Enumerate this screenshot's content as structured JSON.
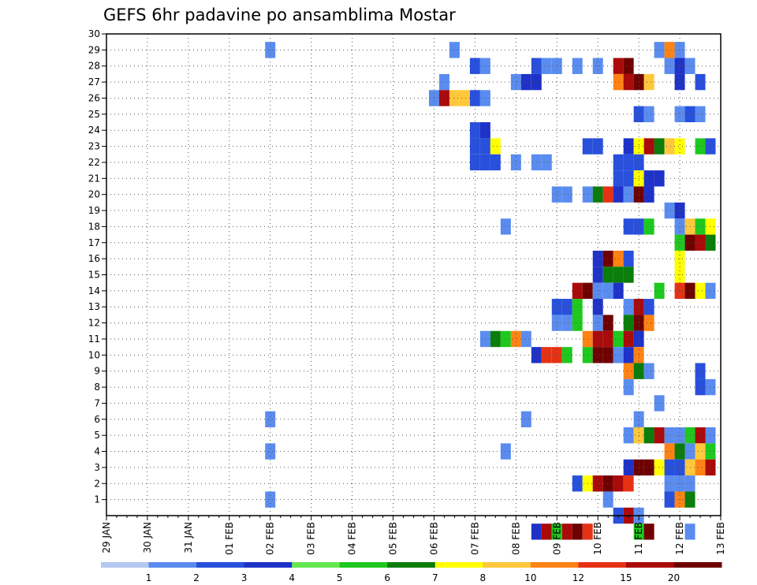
{
  "chart_data": {
    "type": "heatmap",
    "title": "GEFS 6hr padavine po ansamblima Mostar",
    "x_tick_labels": [
      "29 JAN",
      "30 JAN",
      "31 JAN",
      "01 FEB",
      "02 FEB",
      "03 FEB",
      "04 FEB",
      "05 FEB",
      "06 FEB",
      "07 FEB",
      "08 FEB",
      "09 FEB",
      "10 FEB",
      "11 FEB",
      "12 FEB",
      "13 FEB"
    ],
    "y_tick_labels": [
      "1",
      "2",
      "3",
      "4",
      "5",
      "6",
      "7",
      "8",
      "9",
      "10",
      "11",
      "12",
      "13",
      "14",
      "15",
      "16",
      "17",
      "18",
      "19",
      "20",
      "21",
      "22",
      "23",
      "24",
      "25",
      "26",
      "27",
      "28",
      "29",
      "30"
    ],
    "x_range_steps": [
      0,
      60
    ],
    "y_range": [
      0,
      30
    ],
    "grid": true,
    "colorbar": {
      "levels": [
        1,
        2,
        3,
        4,
        5,
        6,
        7,
        8,
        10,
        12,
        15,
        20
      ],
      "colors": [
        "#b4c8f0",
        "#5a8cf0",
        "#2850dc",
        "#1e32c8",
        "#64e650",
        "#1ec81e",
        "#0a7d0a",
        "#ffff00",
        "#ffc83c",
        "#ff8214",
        "#e63214",
        "#aa0a0a",
        "#6e0000"
      ]
    },
    "cells": [
      [
        16,
        29,
        1
      ],
      [
        34,
        29,
        1
      ],
      [
        54,
        29,
        1
      ],
      [
        55,
        29,
        9
      ],
      [
        56,
        29,
        1
      ],
      [
        36,
        28,
        2
      ],
      [
        37,
        28,
        1
      ],
      [
        42,
        28,
        2
      ],
      [
        43,
        28,
        1
      ],
      [
        44,
        28,
        1
      ],
      [
        46,
        28,
        1
      ],
      [
        48,
        28,
        1
      ],
      [
        50,
        28,
        11
      ],
      [
        51,
        28,
        12
      ],
      [
        55,
        28,
        1
      ],
      [
        56,
        28,
        3
      ],
      [
        57,
        28,
        1
      ],
      [
        33,
        27,
        1
      ],
      [
        40,
        27,
        1
      ],
      [
        41,
        27,
        3
      ],
      [
        42,
        27,
        3
      ],
      [
        50,
        27,
        9
      ],
      [
        51,
        27,
        11
      ],
      [
        52,
        27,
        12
      ],
      [
        53,
        27,
        8
      ],
      [
        56,
        27,
        3
      ],
      [
        58,
        27,
        2
      ],
      [
        32,
        26,
        1
      ],
      [
        33,
        26,
        11
      ],
      [
        34,
        26,
        8
      ],
      [
        35,
        26,
        8
      ],
      [
        36,
        26,
        2
      ],
      [
        37,
        26,
        1
      ],
      [
        52,
        25,
        2
      ],
      [
        53,
        25,
        1
      ],
      [
        56,
        25,
        1
      ],
      [
        57,
        25,
        2
      ],
      [
        58,
        25,
        1
      ],
      [
        36,
        24,
        2
      ],
      [
        37,
        24,
        3
      ],
      [
        36,
        23,
        2
      ],
      [
        37,
        23,
        2
      ],
      [
        38,
        23,
        7
      ],
      [
        47,
        23,
        2
      ],
      [
        48,
        23,
        2
      ],
      [
        51,
        23,
        3
      ],
      [
        52,
        23,
        7
      ],
      [
        53,
        23,
        11
      ],
      [
        54,
        23,
        6
      ],
      [
        55,
        23,
        8
      ],
      [
        56,
        23,
        7
      ],
      [
        58,
        23,
        5
      ],
      [
        59,
        23,
        2
      ],
      [
        36,
        22,
        2
      ],
      [
        37,
        22,
        2
      ],
      [
        38,
        22,
        2
      ],
      [
        40,
        22,
        1
      ],
      [
        42,
        22,
        1
      ],
      [
        43,
        22,
        1
      ],
      [
        50,
        22,
        2
      ],
      [
        51,
        22,
        2
      ],
      [
        52,
        22,
        2
      ],
      [
        50,
        21,
        2
      ],
      [
        51,
        21,
        2
      ],
      [
        52,
        21,
        7
      ],
      [
        53,
        21,
        3
      ],
      [
        54,
        21,
        3
      ],
      [
        44,
        20,
        1
      ],
      [
        45,
        20,
        1
      ],
      [
        47,
        20,
        1
      ],
      [
        48,
        20,
        6
      ],
      [
        49,
        20,
        10
      ],
      [
        50,
        20,
        3
      ],
      [
        51,
        20,
        1
      ],
      [
        52,
        20,
        12
      ],
      [
        53,
        20,
        3
      ],
      [
        55,
        19,
        1
      ],
      [
        56,
        19,
        3
      ],
      [
        39,
        18,
        1
      ],
      [
        51,
        18,
        2
      ],
      [
        52,
        18,
        2
      ],
      [
        53,
        18,
        5
      ],
      [
        56,
        18,
        1
      ],
      [
        57,
        18,
        8
      ],
      [
        58,
        18,
        5
      ],
      [
        59,
        18,
        7
      ],
      [
        56,
        17,
        5
      ],
      [
        57,
        17,
        12
      ],
      [
        58,
        17,
        11
      ],
      [
        59,
        17,
        6
      ],
      [
        48,
        16,
        3
      ],
      [
        49,
        16,
        12
      ],
      [
        50,
        16,
        9
      ],
      [
        51,
        16,
        2
      ],
      [
        56,
        16,
        7
      ],
      [
        48,
        15,
        3
      ],
      [
        49,
        15,
        6
      ],
      [
        50,
        15,
        6
      ],
      [
        51,
        15,
        6
      ],
      [
        56,
        15,
        7
      ],
      [
        46,
        14,
        11
      ],
      [
        47,
        14,
        12
      ],
      [
        48,
        14,
        1
      ],
      [
        49,
        14,
        1
      ],
      [
        50,
        14,
        3
      ],
      [
        54,
        14,
        5
      ],
      [
        56,
        14,
        10
      ],
      [
        57,
        14,
        12
      ],
      [
        58,
        14,
        7
      ],
      [
        59,
        14,
        1
      ],
      [
        44,
        13,
        2
      ],
      [
        45,
        13,
        2
      ],
      [
        46,
        13,
        5
      ],
      [
        48,
        13,
        3
      ],
      [
        51,
        13,
        1
      ],
      [
        52,
        13,
        11
      ],
      [
        53,
        13,
        2
      ],
      [
        44,
        12,
        1
      ],
      [
        45,
        12,
        1
      ],
      [
        46,
        12,
        5
      ],
      [
        48,
        12,
        1
      ],
      [
        49,
        12,
        12
      ],
      [
        51,
        12,
        6
      ],
      [
        52,
        12,
        12
      ],
      [
        53,
        12,
        9
      ],
      [
        37,
        11,
        1
      ],
      [
        38,
        11,
        6
      ],
      [
        39,
        11,
        5
      ],
      [
        40,
        11,
        9
      ],
      [
        41,
        11,
        1
      ],
      [
        47,
        11,
        9
      ],
      [
        48,
        11,
        11
      ],
      [
        49,
        11,
        11
      ],
      [
        50,
        11,
        5
      ],
      [
        51,
        11,
        11
      ],
      [
        52,
        11,
        3
      ],
      [
        42,
        10,
        3
      ],
      [
        43,
        10,
        10
      ],
      [
        44,
        10,
        10
      ],
      [
        45,
        10,
        5
      ],
      [
        47,
        10,
        5
      ],
      [
        48,
        10,
        12
      ],
      [
        49,
        10,
        12
      ],
      [
        50,
        10,
        1
      ],
      [
        51,
        10,
        3
      ],
      [
        52,
        10,
        9
      ],
      [
        51,
        9,
        9
      ],
      [
        52,
        9,
        6
      ],
      [
        53,
        9,
        1
      ],
      [
        58,
        9,
        2
      ],
      [
        51,
        8,
        1
      ],
      [
        58,
        8,
        2
      ],
      [
        59,
        8,
        1
      ],
      [
        54,
        7,
        1
      ],
      [
        16,
        6,
        1
      ],
      [
        41,
        6,
        1
      ],
      [
        52,
        6,
        1
      ],
      [
        51,
        5,
        1
      ],
      [
        52,
        5,
        8
      ],
      [
        53,
        5,
        6
      ],
      [
        54,
        5,
        11
      ],
      [
        55,
        5,
        1
      ],
      [
        56,
        5,
        1
      ],
      [
        57,
        5,
        5
      ],
      [
        58,
        5,
        11
      ],
      [
        59,
        5,
        1
      ],
      [
        16,
        4,
        1
      ],
      [
        39,
        4,
        1
      ],
      [
        55,
        4,
        9
      ],
      [
        56,
        4,
        6
      ],
      [
        57,
        4,
        1
      ],
      [
        58,
        4,
        8
      ],
      [
        59,
        4,
        5
      ],
      [
        51,
        3,
        3
      ],
      [
        52,
        3,
        12
      ],
      [
        53,
        3,
        12
      ],
      [
        54,
        3,
        7
      ],
      [
        55,
        3,
        2
      ],
      [
        56,
        3,
        2
      ],
      [
        57,
        3,
        8
      ],
      [
        58,
        3,
        9
      ],
      [
        59,
        3,
        11
      ],
      [
        46,
        2,
        2
      ],
      [
        47,
        2,
        7
      ],
      [
        48,
        2,
        11
      ],
      [
        49,
        2,
        12
      ],
      [
        50,
        2,
        11
      ],
      [
        51,
        2,
        10
      ],
      [
        55,
        2,
        1
      ],
      [
        56,
        2,
        1
      ],
      [
        57,
        2,
        1
      ],
      [
        16,
        1,
        1
      ],
      [
        49,
        1,
        1
      ],
      [
        55,
        1,
        2
      ],
      [
        56,
        1,
        9
      ],
      [
        57,
        1,
        6
      ],
      [
        50,
        0,
        2
      ],
      [
        51,
        0,
        11
      ],
      [
        52,
        0,
        1
      ],
      [
        42,
        -1,
        3
      ],
      [
        43,
        -1,
        11
      ],
      [
        44,
        -1,
        5
      ],
      [
        45,
        -1,
        11
      ],
      [
        46,
        -1,
        12
      ],
      [
        47,
        -1,
        10
      ],
      [
        52,
        -1,
        5
      ],
      [
        53,
        -1,
        12
      ],
      [
        57,
        -1,
        1
      ]
    ]
  }
}
